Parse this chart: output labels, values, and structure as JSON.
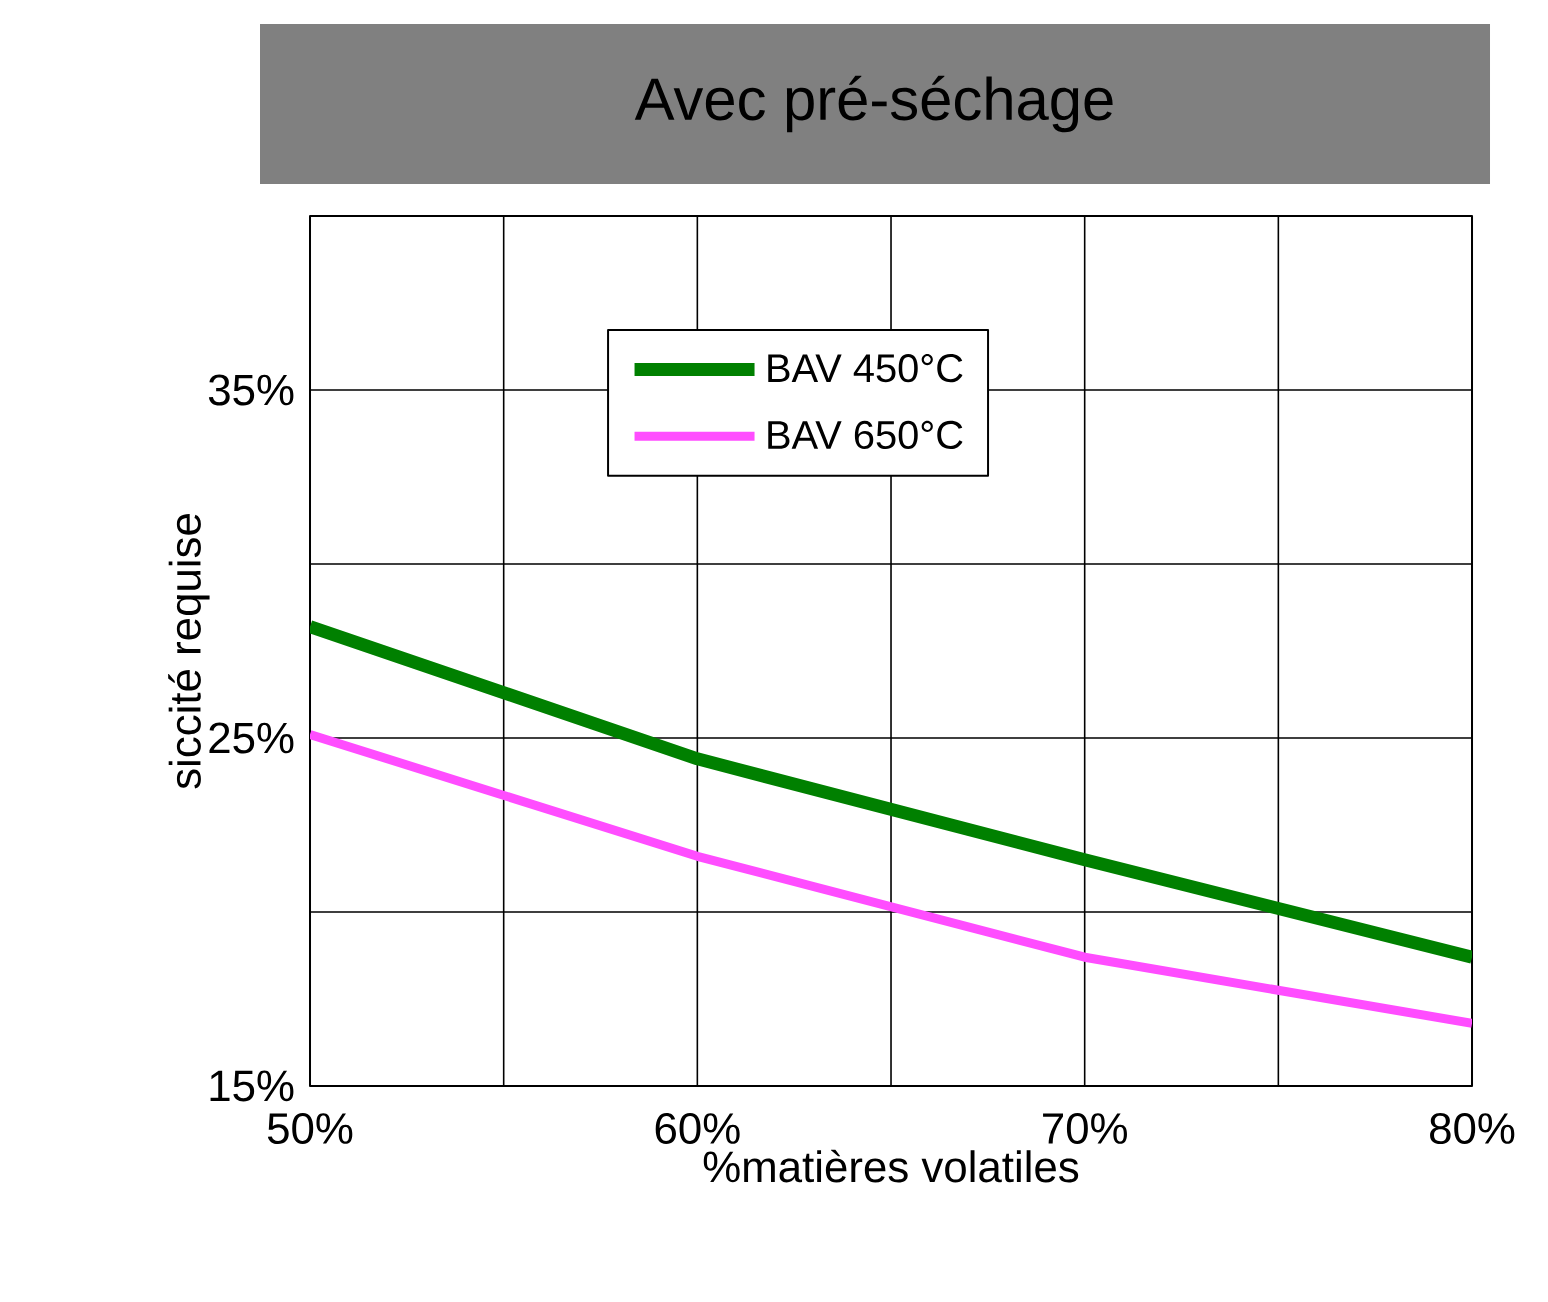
{
  "chart_data": {
    "type": "line",
    "title": "Avec pré-séchage",
    "xlabel": "%matières volatiles",
    "ylabel": "siccité requise",
    "x": [
      50,
      60,
      70,
      80
    ],
    "series": [
      {
        "name": "BAV 450°C",
        "color": "#008000",
        "values": [
          28.2,
          24.4,
          21.5,
          18.7
        ]
      },
      {
        "name": "BAV 650°C",
        "color": "#ff4dff",
        "values": [
          25.1,
          21.6,
          18.7,
          16.8
        ]
      }
    ],
    "xlim": [
      50,
      80
    ],
    "ylim": [
      15,
      40
    ],
    "xticks": [
      {
        "value": 50,
        "label": "50%"
      },
      {
        "value": 55,
        "label": null
      },
      {
        "value": 60,
        "label": "60%"
      },
      {
        "value": 65,
        "label": null
      },
      {
        "value": 70,
        "label": "70%"
      },
      {
        "value": 75,
        "label": null
      },
      {
        "value": 80,
        "label": "80%"
      }
    ],
    "yticks": [
      {
        "value": 15,
        "label": "15%"
      },
      {
        "value": 20,
        "label": null
      },
      {
        "value": 25,
        "label": "25%"
      },
      {
        "value": 30,
        "label": null
      },
      {
        "value": 35,
        "label": "35%"
      },
      {
        "value": 40,
        "label": null
      }
    ],
    "grid": true,
    "legend": "top",
    "marker": "none",
    "line_style": "solid"
  }
}
